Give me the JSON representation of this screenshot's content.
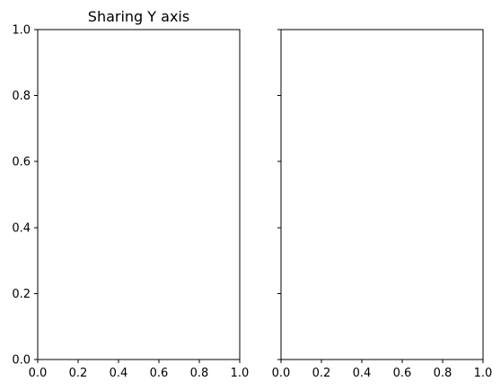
{
  "chart_data": [
    {
      "type": "line",
      "title": "Sharing Y axis",
      "xlabel": "",
      "ylabel": "",
      "xlim": [
        0,
        1
      ],
      "ylim": [
        0,
        1
      ],
      "grid": false,
      "sharey": true,
      "x_ticks": [
        "0.0",
        "0.2",
        "0.4",
        "0.6",
        "0.8",
        "1.0"
      ],
      "y_ticks": [
        "0.0",
        "0.2",
        "0.4",
        "0.6",
        "0.8",
        "1.0"
      ],
      "y_tick_labels_visible": true,
      "series": []
    },
    {
      "type": "line",
      "title": "",
      "xlabel": "",
      "ylabel": "",
      "xlim": [
        0,
        1
      ],
      "ylim": [
        0,
        1
      ],
      "grid": false,
      "sharey": true,
      "x_ticks": [
        "0.0",
        "0.2",
        "0.4",
        "0.6",
        "0.8",
        "1.0"
      ],
      "y_ticks": [
        "0.0",
        "0.2",
        "0.4",
        "0.6",
        "0.8",
        "1.0"
      ],
      "y_tick_labels_visible": false,
      "series": []
    }
  ]
}
